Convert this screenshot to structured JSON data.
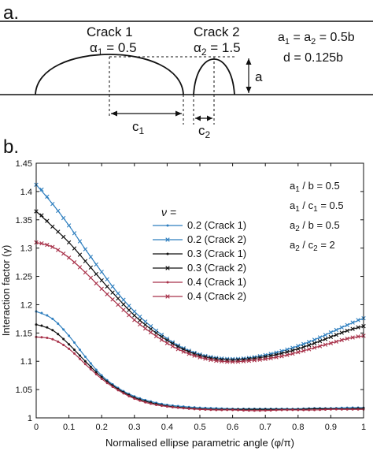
{
  "panel_a": {
    "label": "a.",
    "crack1": {
      "title": "Crack 1",
      "alpha_sym": "α",
      "alpha_sub": "1",
      "alpha_val": " = 0.5",
      "c_sym": "c",
      "c_sub": "1"
    },
    "crack2": {
      "title": "Crack 2",
      "alpha_sym": "α",
      "alpha_sub": "2",
      "alpha_val": " = 1.5",
      "c_sym": "c",
      "c_sub": "2"
    },
    "depth_label": "a",
    "param_line1": {
      "a_sym": "a",
      "sub1": "1",
      "mid": " = a",
      "sub2": "2",
      "rest": " = 0.5b"
    },
    "param_line2": "d = 0.125b"
  },
  "panel_b": {
    "label": "b.",
    "legend_header": "ν =",
    "ratios": [
      {
        "sym": "a",
        "sub": "1",
        "rest": " / b = 0.5"
      },
      {
        "sym": "a",
        "sub": "1",
        "rest": " / c",
        "sub2": "1",
        "rest2": " = 0.5"
      },
      {
        "sym": "a",
        "sub": "2",
        "rest": " / b = 0.5"
      },
      {
        "sym": "a",
        "sub": "2",
        "rest": " / c",
        "sub2": "2",
        "rest2": " = 2"
      }
    ]
  },
  "chart_data": {
    "type": "line",
    "xlabel": "Normalised ellipse parametric angle (φ/π)",
    "ylabel": "Interaction factor (γ)",
    "xlim": [
      0,
      1
    ],
    "ylim": [
      1,
      1.45
    ],
    "xticks": [
      "0",
      "0.1",
      "0.2",
      "0.3",
      "0.4",
      "0.5",
      "0.6",
      "0.7",
      "0.8",
      "0.9",
      "1"
    ],
    "yticks": [
      "1",
      "1.05",
      "1.1",
      "1.15",
      "1.2",
      "1.25",
      "1.3",
      "1.35",
      "1.4",
      "1.45"
    ],
    "x": [
      0,
      0.05,
      0.1,
      0.15,
      0.2,
      0.25,
      0.3,
      0.35,
      0.4,
      0.45,
      0.5,
      0.55,
      0.6,
      0.65,
      0.7,
      0.75,
      0.8,
      0.85,
      0.9,
      0.95,
      1
    ],
    "series": [
      {
        "name": "0.2 (Crack 1)",
        "color": "#2f7fbf",
        "marker": "dot",
        "values": [
          1.188,
          1.175,
          1.145,
          1.108,
          1.075,
          1.053,
          1.038,
          1.029,
          1.023,
          1.02,
          1.018,
          1.017,
          1.016,
          1.016,
          1.016,
          1.016,
          1.016,
          1.017,
          1.017,
          1.018,
          1.018
        ]
      },
      {
        "name": "0.2 (Crack 2)",
        "color": "#2f7fbf",
        "marker": "x",
        "values": [
          1.412,
          1.378,
          1.34,
          1.298,
          1.258,
          1.22,
          1.188,
          1.162,
          1.14,
          1.123,
          1.112,
          1.106,
          1.104,
          1.106,
          1.111,
          1.118,
          1.127,
          1.138,
          1.151,
          1.164,
          1.176
        ]
      },
      {
        "name": "0.3 (Crack 1)",
        "color": "#111111",
        "marker": "dot",
        "values": [
          1.165,
          1.155,
          1.13,
          1.1,
          1.072,
          1.051,
          1.036,
          1.027,
          1.021,
          1.018,
          1.016,
          1.015,
          1.015,
          1.015,
          1.015,
          1.015,
          1.015,
          1.016,
          1.016,
          1.016,
          1.017
        ]
      },
      {
        "name": "0.3 (Crack 2)",
        "color": "#111111",
        "marker": "x",
        "values": [
          1.365,
          1.338,
          1.31,
          1.277,
          1.243,
          1.211,
          1.181,
          1.157,
          1.137,
          1.121,
          1.11,
          1.104,
          1.102,
          1.104,
          1.108,
          1.114,
          1.122,
          1.132,
          1.143,
          1.154,
          1.162
        ]
      },
      {
        "name": "0.4 (Crack 1)",
        "color": "#a8324a",
        "marker": "dot",
        "values": [
          1.143,
          1.139,
          1.122,
          1.095,
          1.069,
          1.049,
          1.034,
          1.025,
          1.02,
          1.017,
          1.015,
          1.014,
          1.014,
          1.013,
          1.013,
          1.014,
          1.014,
          1.014,
          1.015,
          1.015,
          1.015
        ]
      },
      {
        "name": "0.4 (Crack 2)",
        "color": "#a8324a",
        "marker": "x",
        "values": [
          1.31,
          1.302,
          1.283,
          1.257,
          1.228,
          1.2,
          1.173,
          1.151,
          1.132,
          1.117,
          1.107,
          1.101,
          1.099,
          1.101,
          1.104,
          1.109,
          1.116,
          1.124,
          1.132,
          1.14,
          1.145
        ]
      }
    ]
  }
}
